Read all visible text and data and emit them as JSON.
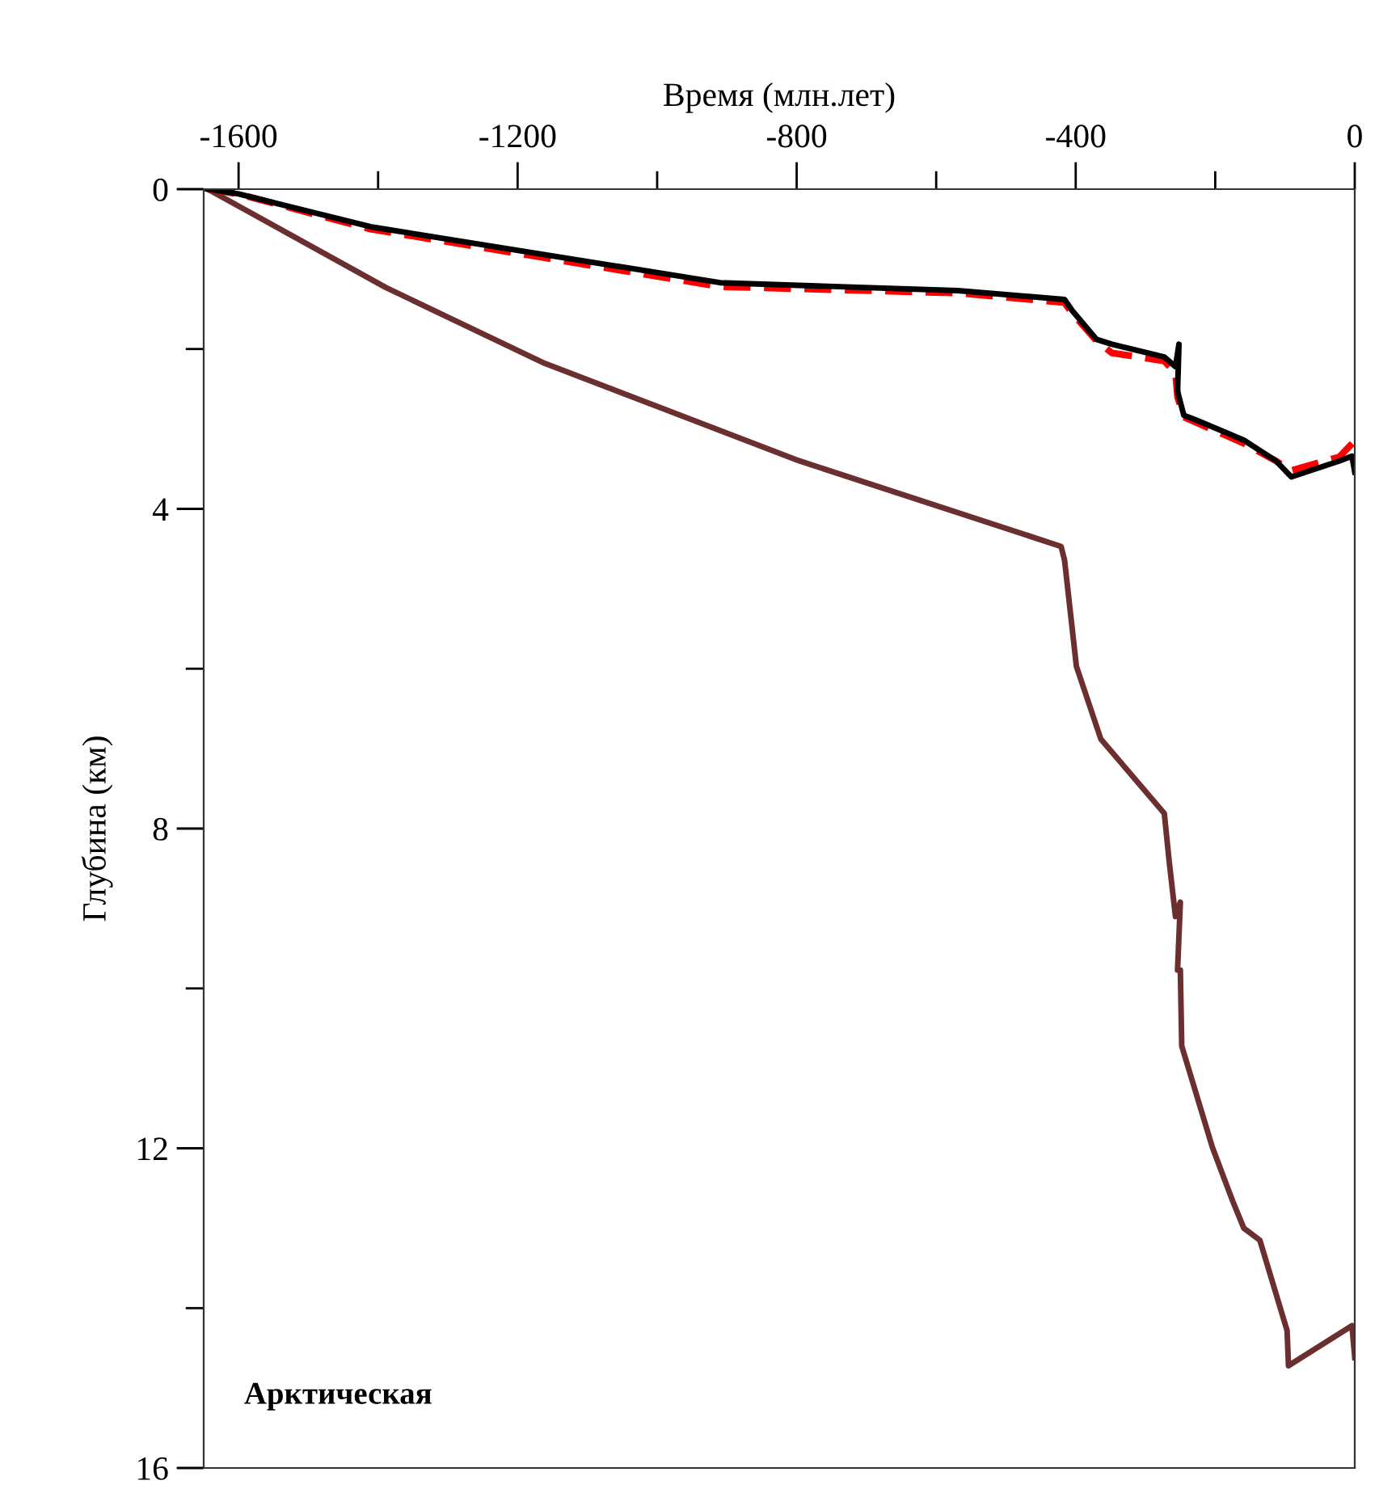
{
  "chart_data": {
    "type": "line",
    "xlabel": "Время (млн.лет)",
    "ylabel": "Глубина (км)",
    "xlim": [
      -1650,
      0
    ],
    "ylim": [
      16,
      0
    ],
    "xticks": [
      -1600,
      {
        "value": -1400,
        "label": null
      },
      -1200,
      {
        "value": -1000,
        "label": null
      },
      -800,
      {
        "value": -600,
        "label": null
      },
      -400,
      {
        "value": -200,
        "label": null
      },
      0
    ],
    "yticks": [
      0,
      {
        "value": 2,
        "label": null
      },
      4,
      {
        "value": 6,
        "label": null
      },
      8,
      {
        "value": 10,
        "label": null
      },
      12,
      {
        "value": 14,
        "label": null
      },
      16
    ],
    "grid": false,
    "legend": false,
    "marker": "none",
    "annotations": [
      "Арктическая"
    ],
    "series": [
      {
        "color": "#6b2f2f",
        "line_style": "solid",
        "x": [
          -1644,
          -1389,
          -1161,
          -796,
          -421,
          -416,
          -399,
          -364,
          -273,
          -266,
          -257,
          -250,
          -254,
          -250,
          -248,
          -204,
          -175,
          -159,
          -136,
          -97,
          -95,
          -4,
          0
        ],
        "values": [
          0,
          1.23,
          2.18,
          3.4,
          4.47,
          4.64,
          5.97,
          6.88,
          7.81,
          8.41,
          9.1,
          8.92,
          9.77,
          9.77,
          10.72,
          11.99,
          12.66,
          13.0,
          13.15,
          14.28,
          14.72,
          14.22,
          14.62
        ]
      },
      {
        "color": "#ff0000",
        "line_style": "dashed",
        "x": [
          -1644,
          -1600,
          -1411,
          -910,
          -569,
          -416,
          -405,
          -370,
          -348,
          -273,
          -257,
          -254,
          -245,
          -227,
          -159,
          -113,
          -91,
          -22,
          0
        ],
        "values": [
          0,
          0.06,
          0.5,
          1.22,
          1.3,
          1.42,
          1.55,
          1.9,
          2.05,
          2.15,
          2.3,
          2.6,
          2.85,
          2.92,
          3.18,
          3.4,
          3.52,
          3.35,
          3.15
        ]
      },
      {
        "color": "#000000",
        "line_style": "solid",
        "x": [
          -1644,
          -1600,
          -1411,
          -910,
          -569,
          -416,
          -405,
          -370,
          -348,
          -273,
          -257,
          -252,
          -254,
          -245,
          -227,
          -159,
          -113,
          -91,
          -22,
          -4,
          0
        ],
        "values": [
          0,
          0.06,
          0.47,
          1.17,
          1.27,
          1.38,
          1.52,
          1.88,
          1.94,
          2.1,
          2.22,
          1.94,
          2.53,
          2.83,
          2.89,
          3.14,
          3.4,
          3.6,
          3.4,
          3.34,
          3.54
        ]
      }
    ]
  }
}
